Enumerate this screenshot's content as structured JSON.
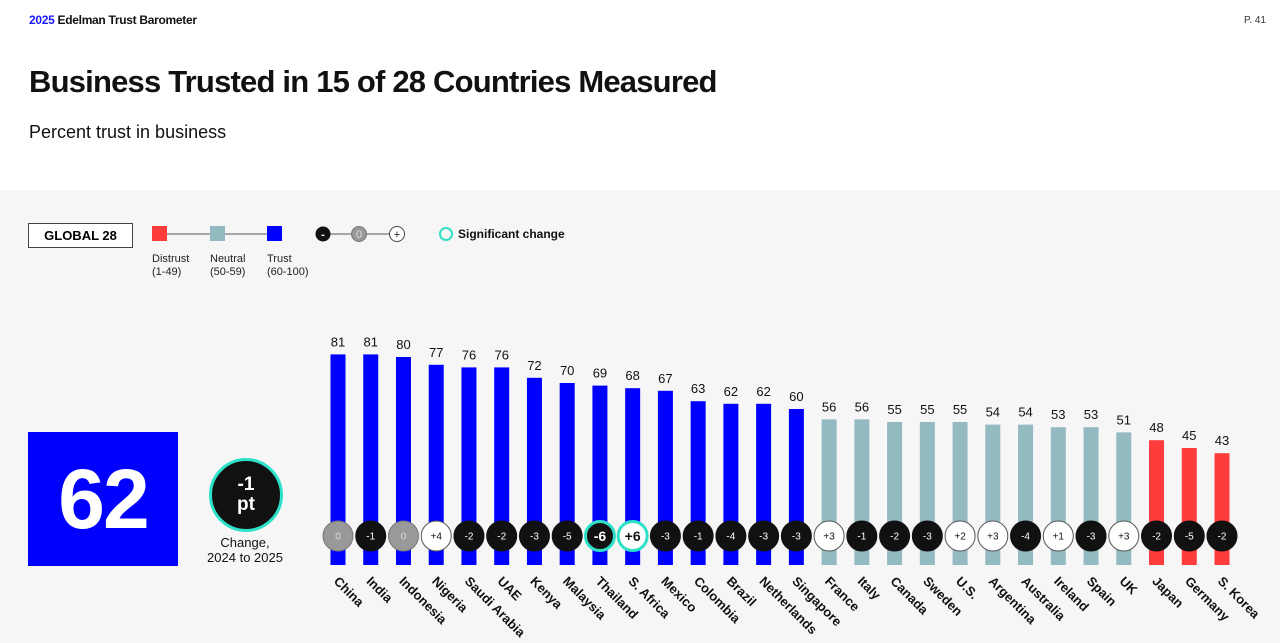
{
  "header": {
    "brand_year": "2025",
    "brand_name": "Edelman Trust Barometer",
    "page": "P. 41"
  },
  "title": "Business Trusted in 15 of 28 Countries Measured",
  "subtitle": "Percent trust in business",
  "legend": {
    "global": "GLOBAL 28",
    "distrust": "Distrust",
    "distrust_range": "(1-49)",
    "neutral": "Neutral",
    "neutral_range": "(50-59)",
    "trust": "Trust",
    "trust_range": "(60-100)",
    "minus": "-",
    "zero": "0",
    "plus": "+",
    "significant": "Significant change"
  },
  "global": {
    "value": "62",
    "change_num": "-1",
    "change_unit": "pt",
    "change_label_1": "Change,",
    "change_label_2": "2024 to 2025"
  },
  "colors": {
    "trust": "#0000ff",
    "neutral": "#93b9c1",
    "distrust": "#ff3c3c",
    "significant": "#2de0c8"
  },
  "chart_data": {
    "type": "bar",
    "title": "Percent trust in business",
    "ylim": [
      0,
      100
    ],
    "categories": [
      "China",
      "India",
      "Indonesia",
      "Nigeria",
      "Saudi Arabia",
      "UAE",
      "Kenya",
      "Malaysia",
      "Thailand",
      "S. Africa",
      "Mexico",
      "Colombia",
      "Brazil",
      "Netherlands",
      "Singapore",
      "France",
      "Italy",
      "Canada",
      "Sweden",
      "U.S.",
      "Argentina",
      "Australia",
      "Ireland",
      "Spain",
      "UK",
      "Japan",
      "Germany",
      "S. Korea"
    ],
    "values": [
      81,
      81,
      80,
      77,
      76,
      76,
      72,
      70,
      69,
      68,
      67,
      63,
      62,
      62,
      60,
      56,
      56,
      55,
      55,
      55,
      54,
      54,
      53,
      53,
      51,
      48,
      45,
      43
    ],
    "changes": [
      "0",
      "-1",
      "0",
      "+4",
      "-2",
      "-2",
      "-3",
      "-5",
      "-6",
      "+6",
      "-3",
      "-1",
      "-4",
      "-3",
      "-3",
      "+3",
      "-1",
      "-2",
      "-3",
      "+2",
      "+3",
      "-4",
      "+1",
      "-3",
      "+3",
      "-2",
      "-5",
      "-2"
    ],
    "significant": [
      "Thailand",
      "S. Africa"
    ]
  }
}
